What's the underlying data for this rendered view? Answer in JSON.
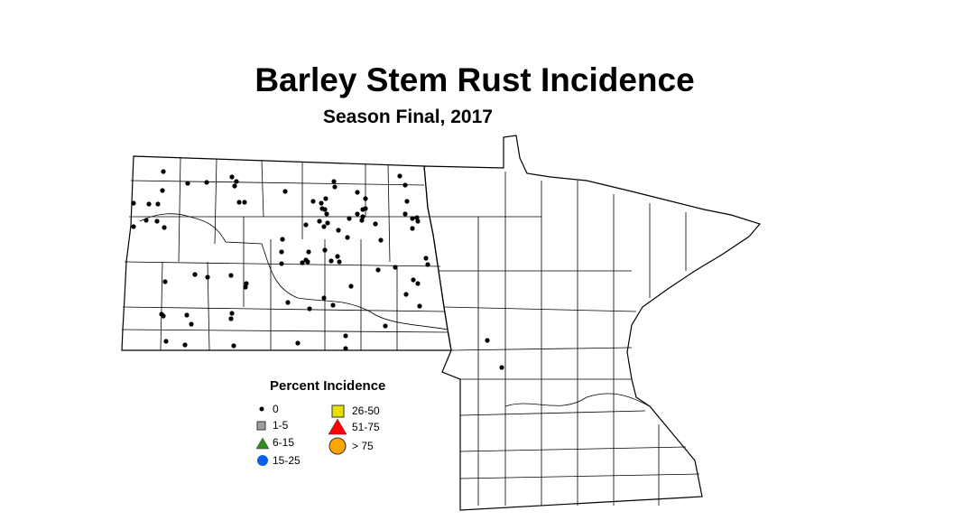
{
  "title": "Barley Stem Rust Incidence",
  "subtitle": "Season Final, 2017",
  "legend": {
    "title": "Percent Incidence",
    "items": [
      {
        "label": "0",
        "symbol": "small-dot",
        "color": "#000000"
      },
      {
        "label": "1-5",
        "symbol": "square",
        "color": "#a0a0a0"
      },
      {
        "label": "6-15",
        "symbol": "triangle",
        "color": "#2e8b1e"
      },
      {
        "label": "15-25",
        "symbol": "circle",
        "color": "#0a5ee8"
      },
      {
        "label": "26-50",
        "symbol": "square",
        "color": "#e8e000"
      },
      {
        "label": "51-75",
        "symbol": "triangle",
        "color": "#ff0000"
      },
      {
        "label": "> 75",
        "symbol": "circle",
        "color": "#ffa500"
      }
    ]
  },
  "observed_category": "0"
}
